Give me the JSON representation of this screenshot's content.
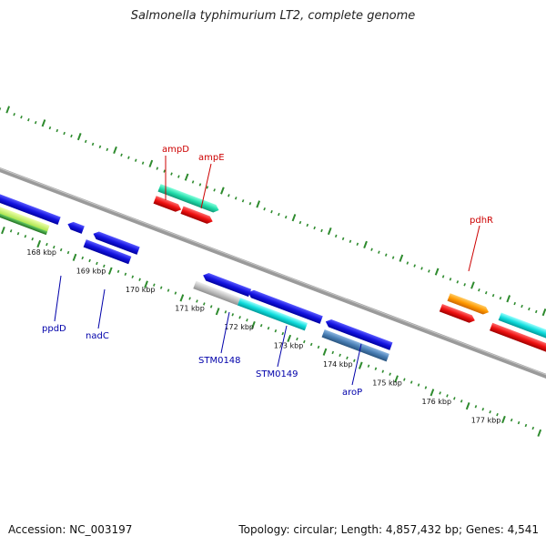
{
  "header": {
    "title": "Salmonella typhimurium LT2, complete genome"
  },
  "footer": {
    "accession": "Accession: NC_003197",
    "summary": "Topology: circular; Length: 4,857,432 bp; Genes: 4,541"
  },
  "map": {
    "tick_labels": [
      "168 kbp",
      "169 kbp",
      "170 kbp",
      "171 kbp",
      "172 kbp",
      "173 kbp",
      "174 kbp",
      "175 kbp",
      "176 kbp",
      "177 kbp"
    ],
    "outer_labels": [
      "ampD",
      "ampE",
      "pdhR"
    ],
    "inner_labels": [
      "ppdD",
      "nadC",
      "STM0148",
      "STM0149",
      "aroP"
    ],
    "colors": {
      "backbone": "#808080",
      "tick": "#2e8b2e",
      "outer_label": "#cc0000",
      "inner_label": "#0000aa",
      "blue": "#1414e0",
      "red": "#ee1111",
      "teal": "#22ddaa",
      "orange": "#ff9900",
      "cyan": "#11dddd",
      "gray": "#c0c0c0",
      "steel": "#4a7fb5",
      "green_dark": "#3a9a3a",
      "green_light": "#bbee55"
    }
  }
}
